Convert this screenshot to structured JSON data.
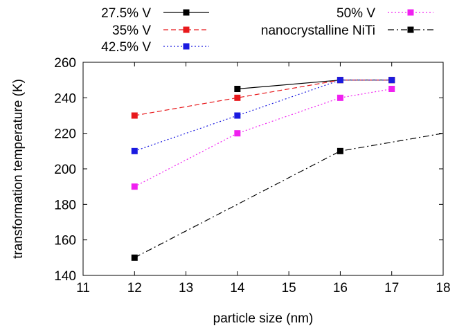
{
  "chart_data": {
    "type": "line",
    "xlabel": "particle size (nm)",
    "ylabel": "transformation temperature (K)",
    "xlim": [
      11,
      18
    ],
    "ylim": [
      140,
      260
    ],
    "xticks": [
      11,
      12,
      13,
      14,
      15,
      16,
      17,
      18
    ],
    "yticks": [
      140,
      160,
      180,
      200,
      220,
      240,
      260
    ],
    "xtick_labels": [
      "11",
      "12",
      "13",
      "14",
      "15",
      "16",
      "17",
      "18"
    ],
    "ytick_labels": [
      "140",
      "160",
      "180",
      "200",
      "220",
      "240",
      "260"
    ],
    "grid": false,
    "legend_position": "top, outside plot area",
    "series": [
      {
        "name": "27.5% V",
        "color": "#000000",
        "line_style": "solid",
        "marker": "square",
        "x": [
          14,
          16,
          17
        ],
        "y": [
          245,
          250,
          250
        ]
      },
      {
        "name": "35% V",
        "color": "#e8191c",
        "line_style": "dashed",
        "marker": "square",
        "x": [
          12,
          14,
          16,
          17
        ],
        "y": [
          230,
          240,
          250,
          250
        ]
      },
      {
        "name": "42.5% V",
        "color": "#1a1ae0",
        "line_style": "dotted",
        "marker": "square",
        "x": [
          12,
          14,
          16,
          17
        ],
        "y": [
          210,
          230,
          250,
          250
        ]
      },
      {
        "name": "50% V",
        "color": "#f020f0",
        "line_style": "dotted",
        "marker": "square",
        "x": [
          12,
          14,
          16,
          17
        ],
        "y": [
          190,
          220,
          240,
          245
        ]
      },
      {
        "name": "nanocrystalline NiTi",
        "color": "#000000",
        "line_style": "dash-dot",
        "marker": "square",
        "x": [
          12,
          14,
          16,
          17,
          18
        ],
        "y": [
          150,
          180,
          210,
          215,
          220
        ],
        "marker_x": [
          12,
          16
        ],
        "marker_y": [
          150,
          210
        ]
      }
    ]
  }
}
